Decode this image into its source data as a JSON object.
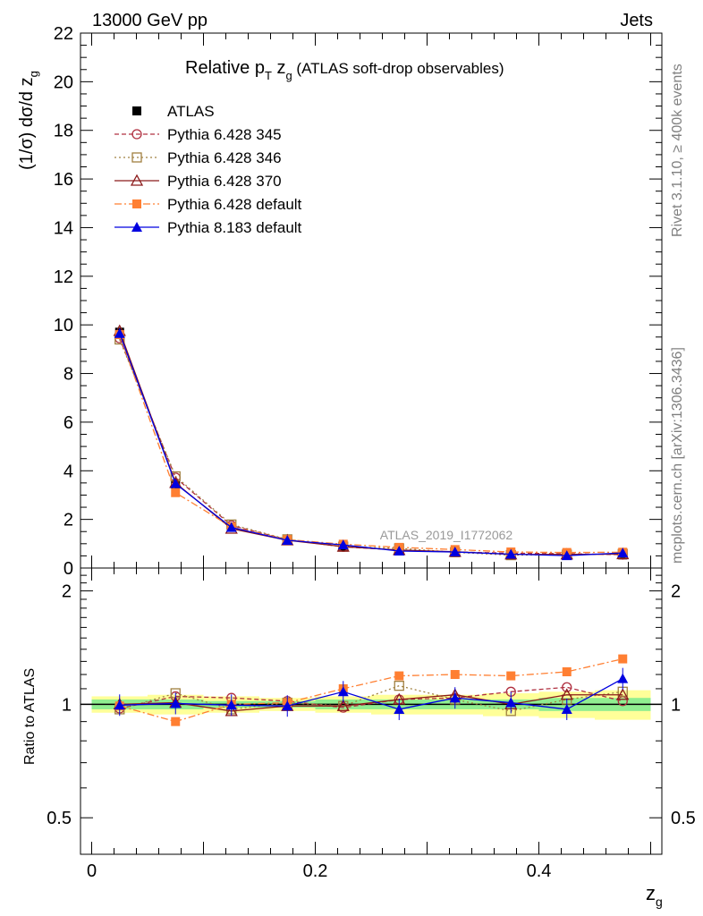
{
  "header": {
    "left": "13000 GeV pp",
    "right": "Jets"
  },
  "side_text": {
    "rivet": "Rivet 3.1.10, ≥ 400k events",
    "mcplots": "mcplots.cern.ch [arXiv:1306.3436]"
  },
  "chart_data": [
    {
      "type": "line",
      "title": "Relative pT zg (ATLAS soft-drop observables)",
      "title_parts": {
        "main": "Relative p",
        "sub": "T",
        "var": " z",
        "var_sub": "g",
        "rest": " (ATLAS soft-drop observables)"
      },
      "ylabel": "(1/σ) dσ/d z",
      "ylabel_sub": "g",
      "ylim": [
        0,
        22
      ],
      "yticks": [
        "0",
        "2",
        "4",
        "6",
        "8",
        "10",
        "12",
        "14",
        "16",
        "18",
        "20",
        "22"
      ],
      "watermark": "ATLAS_2019_I1772062",
      "x": [
        0.025,
        0.075,
        0.125,
        0.175,
        0.225,
        0.275,
        0.325,
        0.375,
        0.425,
        0.475
      ],
      "series": [
        {
          "name": "ATLAS",
          "color": "#000000",
          "marker": "square",
          "values": [
            9.7,
            3.45,
            1.68,
            1.15,
            0.89,
            0.72,
            0.64,
            0.56,
            0.53,
            0.54
          ]
        },
        {
          "name": "Pythia 6.428 345",
          "color": "#b03040",
          "marker": "open-circle",
          "dash": "5,3",
          "values": [
            9.45,
            3.72,
            1.75,
            1.17,
            0.87,
            0.74,
            0.66,
            0.61,
            0.59,
            0.55
          ]
        },
        {
          "name": "Pythia 6.428 346",
          "color": "#a08040",
          "marker": "open-square",
          "dash": "2,3",
          "values": [
            9.4,
            3.77,
            1.79,
            1.18,
            0.88,
            0.81,
            0.65,
            0.53,
            0.55,
            0.58
          ]
        },
        {
          "name": "Pythia 6.428 370",
          "color": "#8b1a1a",
          "marker": "open-triangle",
          "values": [
            9.75,
            3.5,
            1.62,
            1.14,
            0.88,
            0.74,
            0.67,
            0.56,
            0.56,
            0.57
          ]
        },
        {
          "name": "Pythia 6.428 default",
          "color": "#ff7f32",
          "marker": "square",
          "dash": "8,3,2,3",
          "values": [
            9.6,
            3.1,
            1.69,
            1.17,
            0.98,
            0.85,
            0.76,
            0.66,
            0.64,
            0.65
          ]
        },
        {
          "name": "Pythia 8.183 default",
          "color": "#0000e0",
          "marker": "triangle",
          "values": [
            9.65,
            3.47,
            1.67,
            1.14,
            0.95,
            0.7,
            0.66,
            0.57,
            0.51,
            0.62
          ]
        }
      ]
    },
    {
      "type": "line",
      "title": "",
      "xlabel": "z",
      "xlabel_sub": "g",
      "ylabel": "Ratio to ATLAS",
      "ylim": [
        0.4,
        2.3
      ],
      "xlim": [
        -0.01,
        0.51
      ],
      "yticks": [
        "0.5",
        "1",
        "2"
      ],
      "xticks": [
        "0",
        "0.2",
        "0.4"
      ],
      "x": [
        0.025,
        0.075,
        0.125,
        0.175,
        0.225,
        0.275,
        0.325,
        0.375,
        0.425,
        0.475
      ],
      "bands": {
        "inner": [
          0.03,
          0.03,
          0.02,
          0.02,
          0.03,
          0.03,
          0.03,
          0.03,
          0.04,
          0.04
        ],
        "outer": [
          0.05,
          0.06,
          0.05,
          0.04,
          0.05,
          0.06,
          0.06,
          0.07,
          0.08,
          0.09
        ]
      },
      "series": [
        {
          "name": "Pythia 6.428 345",
          "color": "#b03040",
          "marker": "open-circle",
          "dash": "5,3",
          "values": [
            0.975,
            1.05,
            1.04,
            1.02,
            0.98,
            1.03,
            1.04,
            1.08,
            1.11,
            1.02
          ]
        },
        {
          "name": "Pythia 6.428 346",
          "color": "#a08040",
          "marker": "open-square",
          "dash": "2,3",
          "values": [
            0.97,
            1.07,
            0.97,
            1.01,
            0.99,
            1.12,
            1.03,
            0.96,
            1.03,
            1.08
          ]
        },
        {
          "name": "Pythia 6.428 370",
          "color": "#8b1a1a",
          "marker": "open-triangle",
          "values": [
            1.0,
            1.01,
            0.96,
            0.99,
            0.99,
            1.03,
            1.06,
            1.0,
            1.06,
            1.06
          ]
        },
        {
          "name": "Pythia 6.428 default",
          "color": "#ff7f32",
          "marker": "square",
          "dash": "8,3,2,3",
          "values": [
            0.99,
            0.9,
            1.0,
            1.01,
            1.1,
            1.19,
            1.2,
            1.19,
            1.22,
            1.32
          ]
        },
        {
          "name": "Pythia 8.183 default",
          "color": "#0000e0",
          "marker": "triangle",
          "values": [
            0.995,
            1.005,
            0.995,
            0.99,
            1.08,
            0.97,
            1.04,
            1.01,
            0.97,
            1.17
          ]
        }
      ]
    }
  ]
}
